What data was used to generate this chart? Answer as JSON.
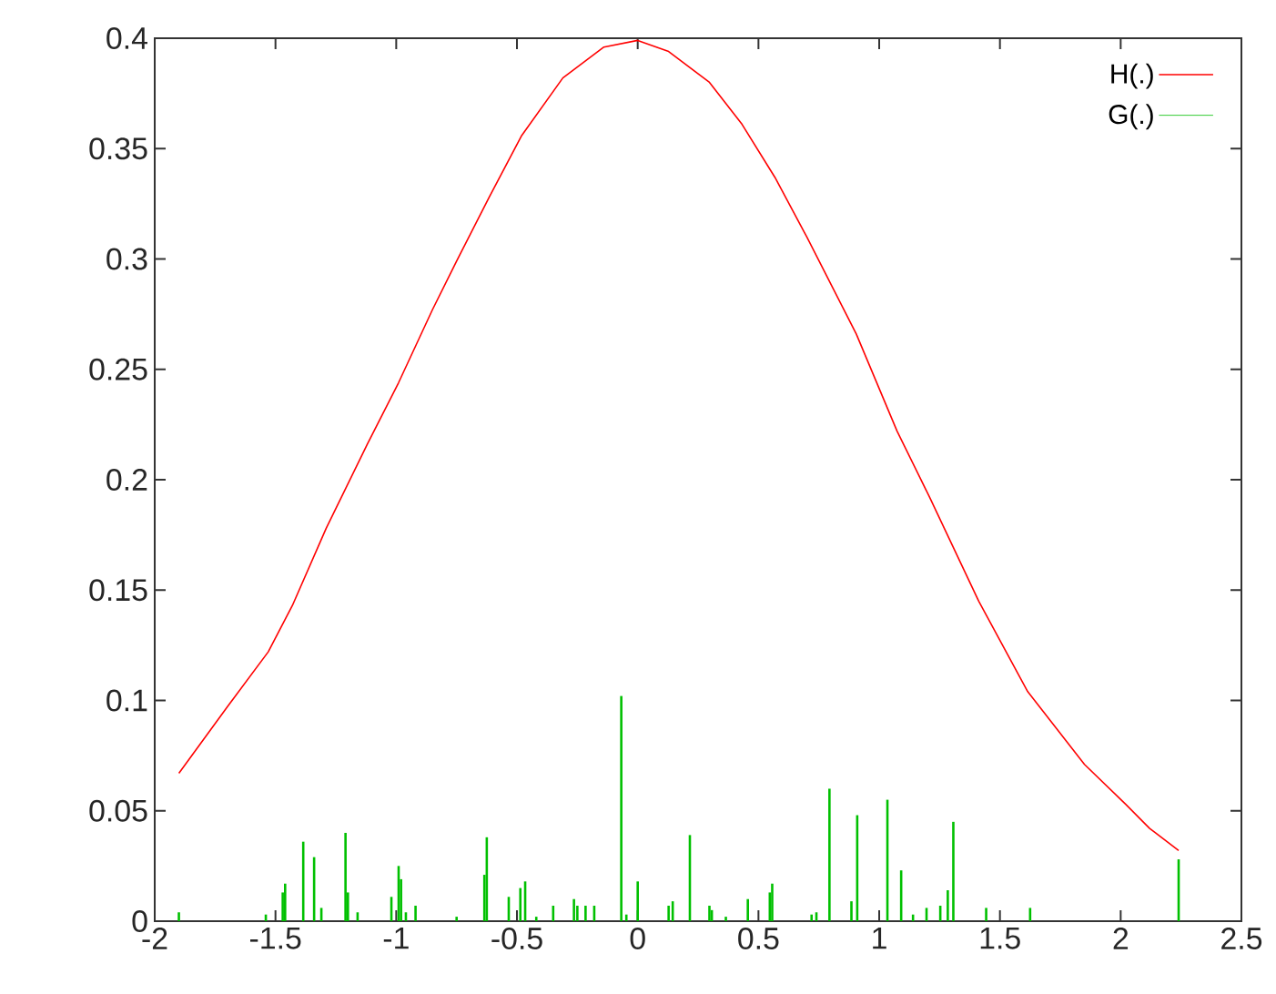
{
  "chart_data": {
    "type": "line",
    "xlim": [
      -2,
      2.5
    ],
    "ylim": [
      0,
      0.4
    ],
    "xticks": [
      -2,
      -1.5,
      -1,
      -0.5,
      0,
      0.5,
      1,
      1.5,
      2,
      2.5
    ],
    "yticks": [
      0,
      0.05,
      0.1,
      0.15,
      0.2,
      0.25,
      0.3,
      0.35,
      0.4
    ],
    "grid": false,
    "legend": "top right",
    "marker": "none",
    "line_style": "solid",
    "series": [
      {
        "name": "H(.)",
        "color": "#ff0000",
        "x": [
          -1.9,
          -1.8,
          -1.7,
          -1.53,
          -1.43,
          -1.29,
          -1.12,
          -0.99,
          -0.85,
          -0.75,
          -0.615,
          -0.48,
          -0.31,
          -0.14,
          0.0,
          0.128,
          0.297,
          0.432,
          0.568,
          0.7,
          0.905,
          1.074,
          1.209,
          1.412,
          1.615,
          1.85,
          2.02,
          2.12,
          2.24
        ],
        "values": [
          0.067,
          0.082,
          0.097,
          0.122,
          0.143,
          0.178,
          0.216,
          0.244,
          0.277,
          0.299,
          0.328,
          0.356,
          0.382,
          0.396,
          0.399,
          0.394,
          0.38,
          0.361,
          0.337,
          0.31,
          0.266,
          0.222,
          0.192,
          0.145,
          0.104,
          0.071,
          0.053,
          0.042,
          0.032
        ]
      },
      {
        "name": "G(.)",
        "type": "bar",
        "color": "#00c000",
        "x": [
          -1.9,
          -1.54,
          -1.47,
          -1.46,
          -1.385,
          -1.34,
          -1.31,
          -1.21,
          -1.2,
          -1.16,
          -1.02,
          -0.99,
          -0.98,
          -0.96,
          -0.92,
          -0.75,
          -0.635,
          -0.625,
          -0.534,
          -0.486,
          -0.466,
          -0.42,
          -0.35,
          -0.264,
          -0.25,
          -0.216,
          -0.18,
          -0.068,
          -0.047,
          0.0,
          0.128,
          0.145,
          0.216,
          0.297,
          0.307,
          0.365,
          0.456,
          0.547,
          0.557,
          0.72,
          0.74,
          0.794,
          0.885,
          0.909,
          1.034,
          1.091,
          1.14,
          1.196,
          1.253,
          1.284,
          1.307,
          1.443,
          1.625,
          2.24
        ],
        "values": [
          0.004,
          0.003,
          0.013,
          0.017,
          0.036,
          0.029,
          0.006,
          0.04,
          0.013,
          0.004,
          0.011,
          0.025,
          0.019,
          0.004,
          0.007,
          0.002,
          0.021,
          0.038,
          0.011,
          0.015,
          0.018,
          0.002,
          0.007,
          0.01,
          0.007,
          0.007,
          0.007,
          0.102,
          0.003,
          0.018,
          0.007,
          0.009,
          0.039,
          0.007,
          0.005,
          0.002,
          0.01,
          0.013,
          0.017,
          0.003,
          0.004,
          0.06,
          0.009,
          0.048,
          0.055,
          0.023,
          0.003,
          0.006,
          0.007,
          0.014,
          0.045,
          0.006,
          0.006,
          0.028
        ]
      }
    ]
  }
}
